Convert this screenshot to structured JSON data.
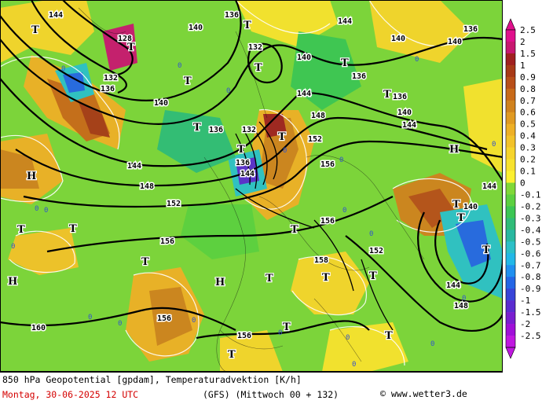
{
  "footer": {
    "title": "850 hPa Geopotential [gpdam], Temperaturadvektion [K/h]",
    "date": "Montag, 30-06-2025  12 UTC",
    "model": "(GFS)  (Mittwoch 00 + 132)",
    "credit": "www.wetter3.de",
    "copyright_symbol": "©"
  },
  "legend": {
    "labels": [
      "2.5",
      "2",
      "1.5",
      "1",
      "0.9",
      "0.8",
      "0.7",
      "0.6",
      "0.5",
      "0.4",
      "0.3",
      "0.2",
      "0.1",
      "0",
      "-0.1",
      "-0.2",
      "-0.3",
      "-0.4",
      "-0.5",
      "-0.6",
      "-0.7",
      "-0.8",
      "-0.9",
      "-1",
      "-1.5",
      "-2",
      "-2.5"
    ],
    "colors": [
      "#e0108c",
      "#c81870",
      "#a02020",
      "#a83a18",
      "#b84f1a",
      "#c86a1a",
      "#d0821e",
      "#e09a22",
      "#eeb026",
      "#f2c22a",
      "#f6d42c",
      "#f8e22e",
      "#fcf030",
      "#80d838",
      "#5cd040",
      "#3cc654",
      "#30bc78",
      "#28b8a0",
      "#2cc0c8",
      "#22b8e8",
      "#2090f0",
      "#2466e6",
      "#3844d8",
      "#5a2cd0",
      "#7a1ed0",
      "#a010d8",
      "#c018e0"
    ],
    "top_arrow_color": "#e0108c",
    "bottom_arrow_color": "#c018e0"
  },
  "map": {
    "contour_labels": [
      "128",
      "132",
      "136",
      "140",
      "144",
      "148",
      "152",
      "156",
      "160"
    ],
    "high_symbol": "H",
    "low_symbol": "T",
    "contour_color": "#000000"
  }
}
